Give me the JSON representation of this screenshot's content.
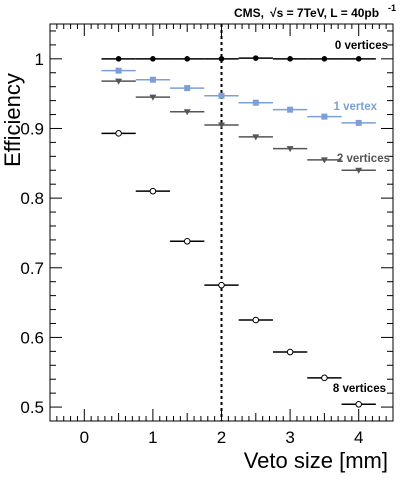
{
  "header": {
    "experiment": "CMS,",
    "energy_prefix": "√s = 7TeV, L = 40pb",
    "energy_superscript": "-1"
  },
  "chart_data": {
    "type": "scatter",
    "xlabel": "Veto size [mm]",
    "ylabel": "Efficiency",
    "xlim": [
      -0.5,
      4.5
    ],
    "ylim": [
      0.48,
      1.05
    ],
    "xticks": [
      0,
      1,
      2,
      3,
      4
    ],
    "xtick_labels": [
      "0",
      "1",
      "2",
      "3",
      "4"
    ],
    "yticks": [
      0.5,
      0.6,
      0.7,
      0.8,
      0.9,
      1.0
    ],
    "ytick_labels": [
      "0.5",
      "0.6",
      "0.7",
      "0.8",
      "0.9",
      "1"
    ],
    "vertical_reference_line_x": 2,
    "x_error": 0.25,
    "series": [
      {
        "name": "0 vertices",
        "marker": "filled-circle",
        "color": "#000000",
        "x": [
          0.5,
          1.0,
          1.5,
          2.0,
          2.5,
          3.0,
          3.5,
          4.0
        ],
        "y": [
          1.0,
          1.0,
          1.0,
          1.0,
          1.001,
          1.0,
          1.0,
          1.0
        ]
      },
      {
        "name": "1 vertex",
        "marker": "filled-square",
        "color": "#7b9fd6",
        "x": [
          0.5,
          1.0,
          1.5,
          2.0,
          2.5,
          3.0,
          3.5,
          4.0
        ],
        "y": [
          0.983,
          0.97,
          0.958,
          0.947,
          0.937,
          0.927,
          0.917,
          0.908
        ]
      },
      {
        "name": "2 vertices",
        "marker": "filled-triangle-down",
        "color": "#555555",
        "x": [
          0.5,
          1.0,
          1.5,
          2.0,
          2.5,
          3.0,
          3.5,
          4.0
        ],
        "y": [
          0.968,
          0.945,
          0.924,
          0.905,
          0.888,
          0.871,
          0.855,
          0.84
        ]
      },
      {
        "name": "8 vertices",
        "marker": "open-circle",
        "color": "#000000",
        "x": [
          0.5,
          1.0,
          1.5,
          2.0,
          2.5,
          3.0,
          3.5,
          4.0
        ],
        "y": [
          0.893,
          0.81,
          0.738,
          0.675,
          0.625,
          0.579,
          0.542,
          0.504
        ]
      }
    ]
  }
}
